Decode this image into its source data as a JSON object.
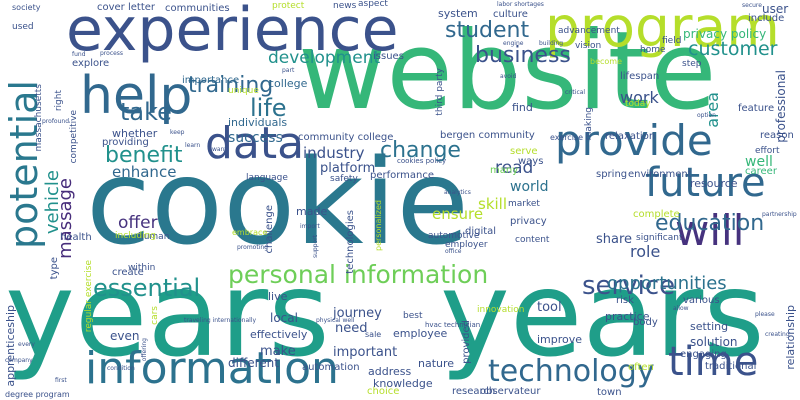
{
  "palette": {
    "dark_purple": "#440154",
    "indigo": "#3b528b",
    "blue": "#31688e",
    "teal": "#21918c",
    "sea_green": "#1f9e89",
    "green": "#35b779",
    "light_green": "#6ece58",
    "lime": "#b5de2b",
    "yellow": "#fde725"
  },
  "words": [
    {
      "text": "cookie",
      "color": "#2a788e",
      "v": false
    },
    {
      "text": "years",
      "color": "#1f9e89",
      "v": false
    },
    {
      "text": "years",
      "color": "#1f9e89",
      "v": false
    },
    {
      "text": "website",
      "color": "#35b779",
      "v": false
    },
    {
      "text": "experience",
      "color": "#3b528b",
      "v": false
    },
    {
      "text": "program",
      "color": "#b5de2b",
      "v": false
    },
    {
      "text": "help",
      "color": "#31688e",
      "v": false
    },
    {
      "text": "potential",
      "color": "#2a788e",
      "v": true
    },
    {
      "text": "information",
      "color": "#2c728e",
      "v": false
    },
    {
      "text": "data",
      "color": "#3b528b",
      "v": false
    },
    {
      "text": "provide",
      "color": "#31688e",
      "v": false
    },
    {
      "text": "future",
      "color": "#31688e",
      "v": false
    },
    {
      "text": "will",
      "color": "#46327e",
      "v": false
    },
    {
      "text": "time",
      "color": "#3b528b",
      "v": false
    },
    {
      "text": "technology",
      "color": "#31688e",
      "v": false
    },
    {
      "text": "personal information",
      "color": "#6ece58",
      "v": false
    },
    {
      "text": "essential",
      "color": "#21918c",
      "v": false
    },
    {
      "text": "service",
      "color": "#3b528b",
      "v": false
    },
    {
      "text": "education",
      "color": "#31688e",
      "v": false
    },
    {
      "text": "customer",
      "color": "#21918c",
      "v": false
    },
    {
      "text": "training",
      "color": "#31688e",
      "v": false
    },
    {
      "text": "benefit",
      "color": "#21918c",
      "v": false
    },
    {
      "text": "take",
      "color": "#31688e",
      "v": false
    },
    {
      "text": "life",
      "color": "#2c728e",
      "v": false
    },
    {
      "text": "student",
      "color": "#31688e",
      "v": false
    },
    {
      "text": "business",
      "color": "#3b528b",
      "v": false
    },
    {
      "text": "change",
      "color": "#2c728e",
      "v": false
    },
    {
      "text": "massage",
      "color": "#472d7b",
      "v": true
    },
    {
      "text": "vehicle",
      "color": "#21918c",
      "v": true
    },
    {
      "text": "opportunities",
      "color": "#2c728e",
      "v": false
    },
    {
      "text": "privacy policy",
      "color": "#35b779",
      "v": false
    },
    {
      "text": "development",
      "color": "#21918c",
      "v": false
    },
    {
      "text": "work",
      "color": "#3b528b",
      "v": false
    },
    {
      "text": "read",
      "color": "#3b528b",
      "v": false
    },
    {
      "text": "industry",
      "color": "#3b528b",
      "v": false
    },
    {
      "text": "success",
      "color": "#31688e",
      "v": false
    },
    {
      "text": "offer",
      "color": "#46327e",
      "v": false
    },
    {
      "text": "enhance",
      "color": "#31688e",
      "v": false
    },
    {
      "text": "area",
      "color": "#21918c",
      "v": true
    },
    {
      "text": "role",
      "color": "#3b528b",
      "v": false
    },
    {
      "text": "well",
      "color": "#35b779",
      "v": false
    },
    {
      "text": "community college",
      "color": "#3b528b",
      "v": false
    },
    {
      "text": "bergen community",
      "color": "#3b528b",
      "v": false
    },
    {
      "text": "platform",
      "color": "#3b528b",
      "v": false
    },
    {
      "text": "skill",
      "color": "#b5de2b",
      "v": false
    },
    {
      "text": "ensure",
      "color": "#b5de2b",
      "v": false
    },
    {
      "text": "world",
      "color": "#2c728e",
      "v": false
    },
    {
      "text": "individuals",
      "color": "#31688e",
      "v": false
    },
    {
      "text": "college",
      "color": "#31688e",
      "v": false
    },
    {
      "text": "importance",
      "color": "#31688e",
      "v": false
    },
    {
      "text": "explore",
      "color": "#3b528b",
      "v": false
    },
    {
      "text": "cover letter",
      "color": "#3b528b",
      "v": false
    },
    {
      "text": "communities",
      "color": "#3b528b",
      "v": false
    },
    {
      "text": "system",
      "color": "#3b528b",
      "v": false
    },
    {
      "text": "culture",
      "color": "#3b528b",
      "v": false
    },
    {
      "text": "user",
      "color": "#3b528b",
      "v": false
    },
    {
      "text": "include",
      "color": "#3b528b",
      "v": false
    },
    {
      "text": "professional",
      "color": "#3b528b",
      "v": true
    },
    {
      "text": "feature",
      "color": "#3b528b",
      "v": false
    },
    {
      "text": "reason",
      "color": "#3b528b",
      "v": false
    },
    {
      "text": "effort",
      "color": "#3b528b",
      "v": false
    },
    {
      "text": "career",
      "color": "#35b779",
      "v": false
    },
    {
      "text": "resource",
      "color": "#3b528b",
      "v": false
    },
    {
      "text": "environment",
      "color": "#3b528b",
      "v": false
    },
    {
      "text": "spring",
      "color": "#3b528b",
      "v": false
    },
    {
      "text": "relaxation",
      "color": "#3b528b",
      "v": false
    },
    {
      "text": "exercise",
      "color": "#3b528b",
      "v": false
    },
    {
      "text": "performance",
      "color": "#3b528b",
      "v": false
    },
    {
      "text": "many",
      "color": "#6ece58",
      "v": false
    },
    {
      "text": "ways",
      "color": "#3b528b",
      "v": false
    },
    {
      "text": "serve",
      "color": "#b5de2b",
      "v": false
    },
    {
      "text": "market",
      "color": "#3b528b",
      "v": false
    },
    {
      "text": "privacy",
      "color": "#3b528b",
      "v": false
    },
    {
      "text": "share",
      "color": "#3b528b",
      "v": false
    },
    {
      "text": "complete",
      "color": "#b5de2b",
      "v": false
    },
    {
      "text": "significant",
      "color": "#3b528b",
      "v": false
    },
    {
      "text": "digital",
      "color": "#3b528b",
      "v": false
    },
    {
      "text": "automotive",
      "color": "#3b528b",
      "v": false
    },
    {
      "text": "employer",
      "color": "#3b528b",
      "v": false
    },
    {
      "text": "content",
      "color": "#3b528b",
      "v": false
    },
    {
      "text": "tool",
      "color": "#3b528b",
      "v": false
    },
    {
      "text": "risk",
      "color": "#3b528b",
      "v": false
    },
    {
      "text": "body",
      "color": "#3b528b",
      "v": false
    },
    {
      "text": "various",
      "color": "#3b528b",
      "v": false
    },
    {
      "text": "setting",
      "color": "#3b528b",
      "v": false
    },
    {
      "text": "solution",
      "color": "#3b528b",
      "v": false
    },
    {
      "text": "engaging",
      "color": "#3b528b",
      "v": false
    },
    {
      "text": "traditional",
      "color": "#3b528b",
      "v": false
    },
    {
      "text": "relationship",
      "color": "#3b528b",
      "v": true
    },
    {
      "text": "practice",
      "color": "#3b528b",
      "v": false
    },
    {
      "text": "improve",
      "color": "#3b528b",
      "v": false
    },
    {
      "text": "often",
      "color": "#b5de2b",
      "v": false
    },
    {
      "text": "town",
      "color": "#3b528b",
      "v": false
    },
    {
      "text": "research",
      "color": "#3b528b",
      "v": false
    },
    {
      "text": "observateur",
      "color": "#3b528b",
      "v": false
    },
    {
      "text": "choice",
      "color": "#b5de2b",
      "v": false
    },
    {
      "text": "knowledge",
      "color": "#3b528b",
      "v": false
    },
    {
      "text": "address",
      "color": "#3b528b",
      "v": false
    },
    {
      "text": "nature",
      "color": "#3b528b",
      "v": false
    },
    {
      "text": "important",
      "color": "#3b528b",
      "v": false
    },
    {
      "text": "employee",
      "color": "#3b528b",
      "v": false
    },
    {
      "text": "need",
      "color": "#3b528b",
      "v": false
    },
    {
      "text": "best",
      "color": "#3b528b",
      "v": false
    },
    {
      "text": "journey",
      "color": "#3b528b",
      "v": false
    },
    {
      "text": "local",
      "color": "#3b528b",
      "v": false
    },
    {
      "text": "live",
      "color": "#3b528b",
      "v": false
    },
    {
      "text": "make",
      "color": "#3b528b",
      "v": false
    },
    {
      "text": "automation",
      "color": "#3b528b",
      "v": false
    },
    {
      "text": "different",
      "color": "#3b528b",
      "v": false
    },
    {
      "text": "effectively",
      "color": "#3b528b",
      "v": false
    },
    {
      "text": "even",
      "color": "#3b528b",
      "v": false
    },
    {
      "text": "create",
      "color": "#3b528b",
      "v": false
    },
    {
      "text": "human",
      "color": "#3b528b",
      "v": false
    },
    {
      "text": "including",
      "color": "#b5de2b",
      "v": false
    },
    {
      "text": "within",
      "color": "#3b528b",
      "v": false
    },
    {
      "text": "health",
      "color": "#3b528b",
      "v": false
    },
    {
      "text": "apprenticeship",
      "color": "#3b528b",
      "v": true
    },
    {
      "text": "regular exercise",
      "color": "#b5de2b",
      "v": true
    },
    {
      "text": "competitive",
      "color": "#3b528b",
      "v": true
    },
    {
      "text": "massachusetts",
      "color": "#3b528b",
      "v": true
    },
    {
      "text": "whether",
      "color": "#3b528b",
      "v": false
    },
    {
      "text": "providing",
      "color": "#3b528b",
      "v": false
    },
    {
      "text": "unique",
      "color": "#b5de2b",
      "v": false
    },
    {
      "text": "protect",
      "color": "#b5de2b",
      "v": false
    },
    {
      "text": "news",
      "color": "#3b528b",
      "v": false
    },
    {
      "text": "aspect",
      "color": "#3b528b",
      "v": false
    },
    {
      "text": "issues",
      "color": "#3b528b",
      "v": false
    },
    {
      "text": "advancement",
      "color": "#3b528b",
      "v": false
    },
    {
      "text": "vision",
      "color": "#3b528b",
      "v": false
    },
    {
      "text": "lifespan",
      "color": "#3b528b",
      "v": false
    },
    {
      "text": "home",
      "color": "#3b528b",
      "v": false
    },
    {
      "text": "field",
      "color": "#3b528b",
      "v": false
    },
    {
      "text": "step",
      "color": "#3b528b",
      "v": false
    },
    {
      "text": "become",
      "color": "#b5de2b",
      "v": false
    },
    {
      "text": "today",
      "color": "#b5de2b",
      "v": false
    },
    {
      "text": "find",
      "color": "#3b528b",
      "v": false
    },
    {
      "text": "making",
      "color": "#3b528b",
      "v": true
    },
    {
      "text": "third party",
      "color": "#3b528b",
      "v": true
    },
    {
      "text": "language",
      "color": "#3b528b",
      "v": false
    },
    {
      "text": "safety",
      "color": "#3b528b",
      "v": false
    },
    {
      "text": "challenge",
      "color": "#3b528b",
      "v": true
    },
    {
      "text": "technologies",
      "color": "#3b528b",
      "v": true
    },
    {
      "text": "provided",
      "color": "#3b528b",
      "v": true
    },
    {
      "text": "innovation",
      "color": "#b5de2b",
      "v": false
    },
    {
      "text": "made",
      "color": "#3b528b",
      "v": false
    },
    {
      "text": "embrace",
      "color": "#b5de2b",
      "v": false
    },
    {
      "text": "type",
      "color": "#3b528b",
      "v": true
    },
    {
      "text": "right",
      "color": "#3b528b",
      "v": true
    },
    {
      "text": "society",
      "color": "#3b528b",
      "v": false
    },
    {
      "text": "used",
      "color": "#3b528b",
      "v": false
    },
    {
      "text": "degree program",
      "color": "#3b528b",
      "v": false
    },
    {
      "text": "condition",
      "color": "#3b528b",
      "v": false
    },
    {
      "text": "company",
      "color": "#3b528b",
      "v": false
    },
    {
      "text": "cars",
      "color": "#b5de2b",
      "v": true
    },
    {
      "text": "cookies policy",
      "color": "#3b528b",
      "v": false
    },
    {
      "text": "analytics",
      "color": "#3b528b",
      "v": false
    },
    {
      "text": "office",
      "color": "#3b528b",
      "v": false
    },
    {
      "text": "personalized",
      "color": "#b5de2b",
      "v": true
    },
    {
      "text": "labor shortages",
      "color": "#3b528b",
      "v": false
    },
    {
      "text": "engine",
      "color": "#3b528b",
      "v": false
    },
    {
      "text": "building",
      "color": "#3b528b",
      "v": false
    },
    {
      "text": "secure",
      "color": "#3b528b",
      "v": false
    },
    {
      "text": "critical",
      "color": "#3b528b",
      "v": false
    },
    {
      "text": "avoid",
      "color": "#3b528b",
      "v": false
    },
    {
      "text": "allow",
      "color": "#3b528b",
      "v": false
    },
    {
      "text": "please",
      "color": "#3b528b",
      "v": false
    },
    {
      "text": "partnership",
      "color": "#3b528b",
      "v": false
    },
    {
      "text": "creating",
      "color": "#3b528b",
      "v": false
    },
    {
      "text": "traveling internationally",
      "color": "#3b528b",
      "v": false
    },
    {
      "text": "physical well",
      "color": "#3b528b",
      "v": false
    },
    {
      "text": "hvac technician",
      "color": "#3b528b",
      "v": false
    },
    {
      "text": "sale",
      "color": "#3b528b",
      "v": false
    },
    {
      "text": "keep",
      "color": "#3b528b",
      "v": false
    },
    {
      "text": "option",
      "color": "#3b528b",
      "v": false
    },
    {
      "text": "fund",
      "color": "#3b528b",
      "v": false
    },
    {
      "text": "part",
      "color": "#3b528b",
      "v": false
    },
    {
      "text": "learn",
      "color": "#3b528b",
      "v": false
    },
    {
      "text": "want",
      "color": "#3b528b",
      "v": false
    },
    {
      "text": "profound",
      "color": "#3b528b",
      "v": false
    },
    {
      "text": "every",
      "color": "#3b528b",
      "v": false
    },
    {
      "text": "first",
      "color": "#3b528b",
      "v": false
    },
    {
      "text": "offering",
      "color": "#3b528b",
      "v": true
    },
    {
      "text": "promoting",
      "color": "#3b528b",
      "v": false
    },
    {
      "text": "support",
      "color": "#3b528b",
      "v": true
    },
    {
      "text": "import",
      "color": "#3b528b",
      "v": false
    },
    {
      "text": "process",
      "color": "#3b528b",
      "v": false
    }
  ]
}
